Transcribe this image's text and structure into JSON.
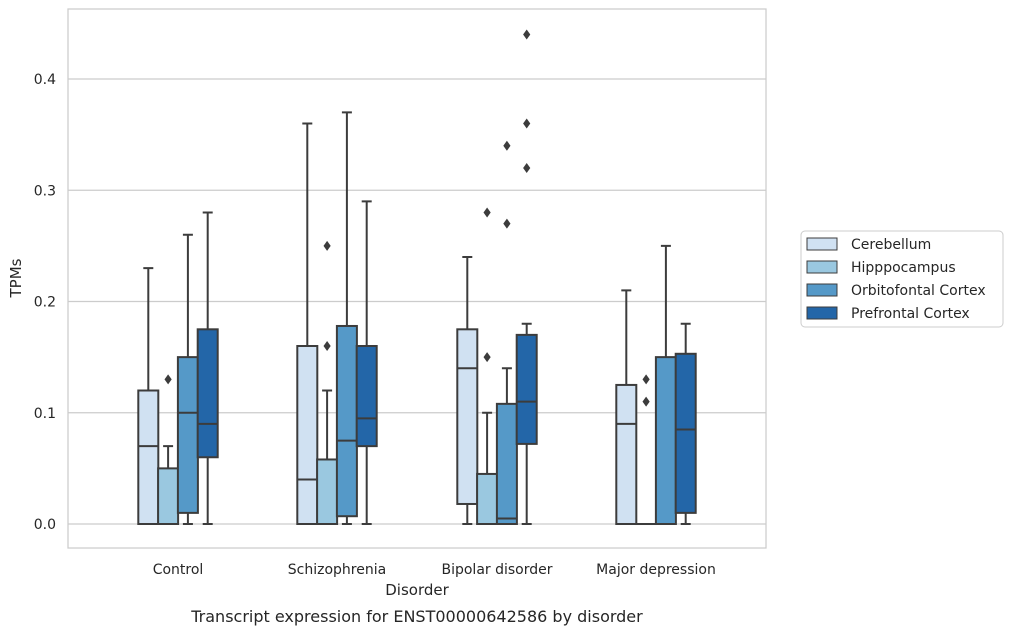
{
  "chart_data": {
    "type": "box",
    "caption": "Transcript expression for ENST00000642586 by disorder",
    "xlabel": "Disorder",
    "ylabel": "TPMs",
    "ylim": [
      -0.021,
      0.465
    ],
    "yticks": [
      "0.0",
      "0.1",
      "0.2",
      "0.3",
      "0.4"
    ],
    "grid": true,
    "legend_position": "right",
    "categories": [
      "Control",
      "Schizophrenia",
      "Bipolar disorder",
      "Major depression"
    ],
    "series": [
      {
        "name": "Cerebellum",
        "color": "#d0e1f2",
        "boxes": [
          {
            "whisker_low": 0.0,
            "q1": 0.0,
            "median": 0.07,
            "q3": 0.12,
            "whisker_high": 0.23,
            "outliers": []
          },
          {
            "whisker_low": 0.0,
            "q1": 0.0,
            "median": 0.04,
            "q3": 0.16,
            "whisker_high": 0.36,
            "outliers": []
          },
          {
            "whisker_low": 0.0,
            "q1": 0.018,
            "median": 0.14,
            "q3": 0.175,
            "whisker_high": 0.24,
            "outliers": []
          },
          {
            "whisker_low": 0.0,
            "q1": 0.0,
            "median": 0.09,
            "q3": 0.125,
            "whisker_high": 0.21,
            "outliers": []
          }
        ]
      },
      {
        "name": "Hipppocampus",
        "color": "#9ac8e0",
        "boxes": [
          {
            "whisker_low": 0.0,
            "q1": 0.0,
            "median": 0.0,
            "q3": 0.05,
            "whisker_high": 0.07,
            "outliers": [
              0.13
            ]
          },
          {
            "whisker_low": 0.0,
            "q1": 0.0,
            "median": 0.0,
            "q3": 0.058,
            "whisker_high": 0.12,
            "outliers": [
              0.16,
              0.25
            ]
          },
          {
            "whisker_low": 0.0,
            "q1": 0.0,
            "median": 0.0,
            "q3": 0.045,
            "whisker_high": 0.1,
            "outliers": [
              0.15,
              0.28
            ]
          },
          {
            "whisker_low": 0.0,
            "q1": 0.0,
            "median": 0.0,
            "q3": 0.0,
            "whisker_high": 0.0,
            "outliers": [
              0.11,
              0.13
            ]
          }
        ]
      },
      {
        "name": "Orbitofontal Cortex",
        "color": "#5599c8",
        "boxes": [
          {
            "whisker_low": 0.0,
            "q1": 0.01,
            "median": 0.1,
            "q3": 0.15,
            "whisker_high": 0.26,
            "outliers": []
          },
          {
            "whisker_low": 0.0,
            "q1": 0.007,
            "median": 0.075,
            "q3": 0.178,
            "whisker_high": 0.37,
            "outliers": []
          },
          {
            "whisker_low": 0.0,
            "q1": 0.0,
            "median": 0.005,
            "q3": 0.108,
            "whisker_high": 0.14,
            "outliers": [
              0.27,
              0.34
            ]
          },
          {
            "whisker_low": 0.0,
            "q1": 0.0,
            "median": 0.0,
            "q3": 0.15,
            "whisker_high": 0.25,
            "outliers": []
          }
        ]
      },
      {
        "name": "Prefrontal Cortex",
        "color": "#2366a8",
        "boxes": [
          {
            "whisker_low": 0.0,
            "q1": 0.06,
            "median": 0.09,
            "q3": 0.175,
            "whisker_high": 0.28,
            "outliers": []
          },
          {
            "whisker_low": 0.0,
            "q1": 0.07,
            "median": 0.095,
            "q3": 0.16,
            "whisker_high": 0.29,
            "outliers": []
          },
          {
            "whisker_low": 0.0,
            "q1": 0.072,
            "median": 0.11,
            "q3": 0.17,
            "whisker_high": 0.18,
            "outliers": [
              0.32,
              0.36,
              0.44
            ]
          },
          {
            "whisker_low": 0.0,
            "q1": 0.01,
            "median": 0.085,
            "q3": 0.153,
            "whisker_high": 0.18,
            "outliers": []
          }
        ]
      }
    ]
  }
}
